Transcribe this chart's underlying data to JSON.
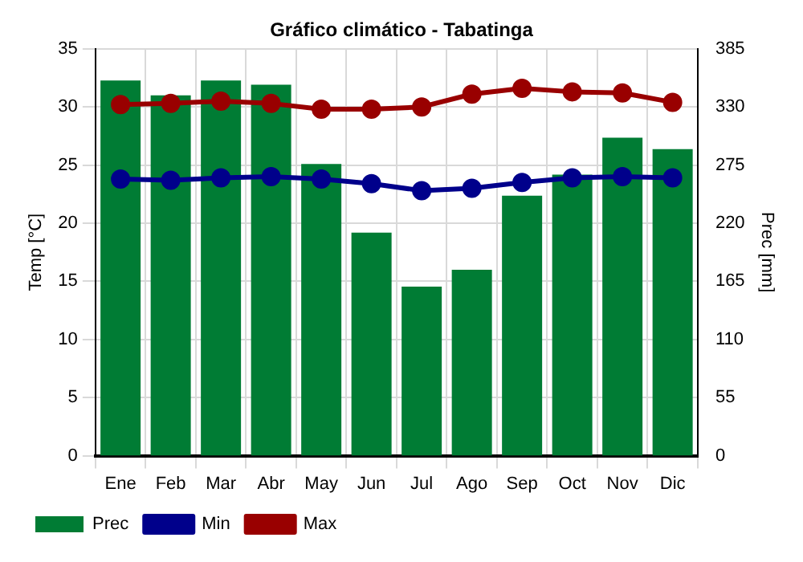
{
  "chart_data": {
    "type": "bar",
    "title": "Gráfico climático - Tabatinga",
    "ylabel": "Temp [°C]",
    "y2label": "Prec [mm]",
    "categories": [
      "Ene",
      "Feb",
      "Mar",
      "Abr",
      "May",
      "Jun",
      "Jul",
      "Ago",
      "Sep",
      "Oct",
      "Nov",
      "Dic"
    ],
    "series": [
      {
        "name": "Prec",
        "axis": "y2",
        "color": "#007c34",
        "values": [
          355,
          341,
          355,
          351,
          276,
          211,
          160,
          176,
          246,
          266,
          301,
          290
        ]
      },
      {
        "name": "Min",
        "type": "line",
        "color": "#00008b",
        "values": [
          23.8,
          23.7,
          23.9,
          24.0,
          23.8,
          23.4,
          22.8,
          23.0,
          23.5,
          23.9,
          24.0,
          23.9
        ]
      },
      {
        "name": "Max",
        "type": "line",
        "color": "#990000",
        "values": [
          30.2,
          30.3,
          30.5,
          30.3,
          29.8,
          29.8,
          30.0,
          31.1,
          31.6,
          31.3,
          31.2,
          30.4
        ]
      }
    ],
    "ylim": [
      0,
      35
    ],
    "yticks": [
      0,
      5,
      10,
      15,
      20,
      25,
      30,
      35
    ],
    "y2lim": [
      0,
      385
    ],
    "y2ticks": [
      0,
      55,
      110,
      165,
      220,
      275,
      330,
      385
    ],
    "grid": true,
    "legend": "bottom left",
    "marker": "circle",
    "line_style": "solid"
  }
}
